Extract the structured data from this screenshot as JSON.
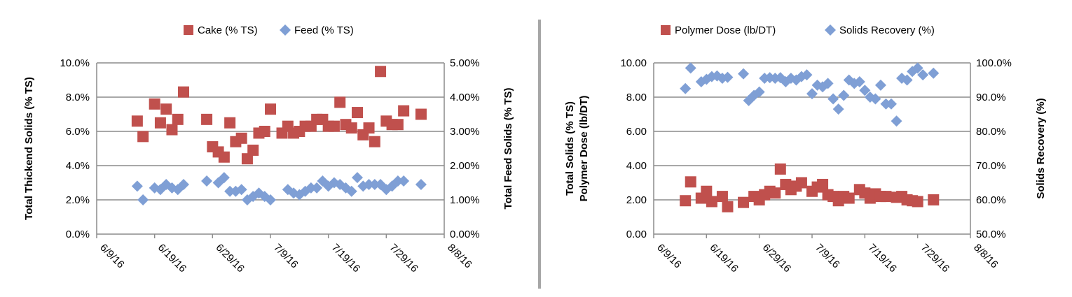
{
  "chart_data": [
    {
      "type": "scatter",
      "x_axis": {
        "type": "date",
        "range": [
          "2016-06-09",
          "2016-08-08"
        ],
        "ticks": [
          "6/9/16",
          "6/19/16",
          "6/29/16",
          "7/9/16",
          "7/19/16",
          "7/29/16",
          "8/8/16"
        ]
      },
      "y_axis_left": {
        "title": "Total Thickend Solids (% TS)",
        "range": [
          0,
          10
        ],
        "ticks": [
          "0.0%",
          "2.0%",
          "4.0%",
          "6.0%",
          "8.0%",
          "10.0%"
        ]
      },
      "y_axis_right": {
        "title": "Total Feed Solids (% TS)",
        "range": [
          0,
          5
        ],
        "ticks": [
          "0.00%",
          "1.00%",
          "2.00%",
          "3.00%",
          "4.00%",
          "5.00%"
        ]
      },
      "grid": true,
      "legend_position": "top",
      "series": [
        {
          "name": "Cake (% TS)",
          "axis": "left",
          "color": "#c0504d",
          "marker": "square",
          "points": [
            [
              "2016-06-16",
              6.6
            ],
            [
              "2016-06-17",
              5.7
            ],
            [
              "2016-06-19",
              7.6
            ],
            [
              "2016-06-20",
              6.5
            ],
            [
              "2016-06-21",
              7.3
            ],
            [
              "2016-06-22",
              6.1
            ],
            [
              "2016-06-23",
              6.7
            ],
            [
              "2016-06-24",
              8.3
            ],
            [
              "2016-06-28",
              6.7
            ],
            [
              "2016-06-29",
              5.1
            ],
            [
              "2016-06-30",
              4.8
            ],
            [
              "2016-07-01",
              4.5
            ],
            [
              "2016-07-02",
              6.5
            ],
            [
              "2016-07-03",
              5.4
            ],
            [
              "2016-07-04",
              5.6
            ],
            [
              "2016-07-05",
              4.4
            ],
            [
              "2016-07-06",
              4.9
            ],
            [
              "2016-07-07",
              5.9
            ],
            [
              "2016-07-08",
              6.0
            ],
            [
              "2016-07-09",
              7.3
            ],
            [
              "2016-07-11",
              5.9
            ],
            [
              "2016-07-12",
              6.3
            ],
            [
              "2016-07-13",
              5.9
            ],
            [
              "2016-07-14",
              6.0
            ],
            [
              "2016-07-15",
              6.3
            ],
            [
              "2016-07-16",
              6.3
            ],
            [
              "2016-07-17",
              6.7
            ],
            [
              "2016-07-18",
              6.7
            ],
            [
              "2016-07-19",
              6.3
            ],
            [
              "2016-07-20",
              6.3
            ],
            [
              "2016-07-21",
              7.7
            ],
            [
              "2016-07-22",
              6.4
            ],
            [
              "2016-07-23",
              6.2
            ],
            [
              "2016-07-24",
              7.1
            ],
            [
              "2016-07-25",
              5.8
            ],
            [
              "2016-07-26",
              6.2
            ],
            [
              "2016-07-27",
              5.4
            ],
            [
              "2016-07-28",
              9.5
            ],
            [
              "2016-07-29",
              6.6
            ],
            [
              "2016-07-30",
              6.4
            ],
            [
              "2016-07-31",
              6.4
            ],
            [
              "2016-08-01",
              7.2
            ],
            [
              "2016-08-04",
              7.0
            ]
          ]
        },
        {
          "name": "Feed (% TS)",
          "axis": "right",
          "color": "#7f9fd5",
          "marker": "diamond",
          "points": [
            [
              "2016-06-16",
              1.4
            ],
            [
              "2016-06-17",
              1.0
            ],
            [
              "2016-06-19",
              1.35
            ],
            [
              "2016-06-20",
              1.3
            ],
            [
              "2016-06-21",
              1.45
            ],
            [
              "2016-06-22",
              1.35
            ],
            [
              "2016-06-23",
              1.3
            ],
            [
              "2016-06-24",
              1.45
            ],
            [
              "2016-06-28",
              1.55
            ],
            [
              "2016-06-30",
              1.5
            ],
            [
              "2016-07-01",
              1.65
            ],
            [
              "2016-07-02",
              1.25
            ],
            [
              "2016-07-03",
              1.25
            ],
            [
              "2016-07-04",
              1.3
            ],
            [
              "2016-07-05",
              1.0
            ],
            [
              "2016-07-06",
              1.1
            ],
            [
              "2016-07-07",
              1.2
            ],
            [
              "2016-07-08",
              1.1
            ],
            [
              "2016-07-09",
              1.0
            ],
            [
              "2016-07-12",
              1.3
            ],
            [
              "2016-07-13",
              1.2
            ],
            [
              "2016-07-14",
              1.15
            ],
            [
              "2016-07-15",
              1.25
            ],
            [
              "2016-07-16",
              1.35
            ],
            [
              "2016-07-17",
              1.35
            ],
            [
              "2016-07-18",
              1.55
            ],
            [
              "2016-07-19",
              1.4
            ],
            [
              "2016-07-20",
              1.5
            ],
            [
              "2016-07-21",
              1.45
            ],
            [
              "2016-07-22",
              1.35
            ],
            [
              "2016-07-23",
              1.25
            ],
            [
              "2016-07-24",
              1.65
            ],
            [
              "2016-07-25",
              1.4
            ],
            [
              "2016-07-26",
              1.45
            ],
            [
              "2016-07-27",
              1.45
            ],
            [
              "2016-07-28",
              1.45
            ],
            [
              "2016-07-29",
              1.3
            ],
            [
              "2016-07-30",
              1.4
            ],
            [
              "2016-07-31",
              1.55
            ],
            [
              "2016-08-01",
              1.55
            ],
            [
              "2016-08-04",
              1.45
            ]
          ]
        }
      ]
    },
    {
      "type": "scatter",
      "x_axis": {
        "type": "date",
        "range": [
          "2016-06-09",
          "2016-08-08"
        ],
        "ticks": [
          "6/9/16",
          "6/19/16",
          "6/29/16",
          "7/9/16",
          "7/19/16",
          "7/29/16",
          "8/8/16"
        ]
      },
      "y_axis_left": {
        "title_lines": [
          "Total Solids (% TS)",
          "Polymer Dose (lb/DT)"
        ],
        "range": [
          0,
          10
        ],
        "ticks": [
          "0.00",
          "2.00",
          "4.00",
          "6.00",
          "8.00",
          "10.00"
        ]
      },
      "y_axis_right": {
        "title": "Solids Recovery (%)",
        "range": [
          50,
          100
        ],
        "ticks": [
          "50.0%",
          "60.0%",
          "70.0%",
          "80.0%",
          "90.0%",
          "100.0%"
        ]
      },
      "grid": true,
      "legend_position": "top",
      "series": [
        {
          "name": "Polymer Dose (lb/DT)",
          "axis": "left",
          "color": "#c0504d",
          "marker": "square",
          "points": [
            [
              "2016-06-15",
              1.95
            ],
            [
              "2016-06-16",
              3.05
            ],
            [
              "2016-06-18",
              2.1
            ],
            [
              "2016-06-19",
              2.5
            ],
            [
              "2016-06-20",
              1.9
            ],
            [
              "2016-06-22",
              2.2
            ],
            [
              "2016-06-23",
              1.6
            ],
            [
              "2016-06-26",
              1.85
            ],
            [
              "2016-06-28",
              2.2
            ],
            [
              "2016-06-29",
              2.0
            ],
            [
              "2016-06-30",
              2.3
            ],
            [
              "2016-07-01",
              2.5
            ],
            [
              "2016-07-02",
              2.4
            ],
            [
              "2016-07-03",
              3.8
            ],
            [
              "2016-07-04",
              2.9
            ],
            [
              "2016-07-05",
              2.6
            ],
            [
              "2016-07-06",
              2.8
            ],
            [
              "2016-07-07",
              3.0
            ],
            [
              "2016-07-09",
              2.5
            ],
            [
              "2016-07-10",
              2.75
            ],
            [
              "2016-07-11",
              2.9
            ],
            [
              "2016-07-12",
              2.3
            ],
            [
              "2016-07-13",
              2.2
            ],
            [
              "2016-07-14",
              1.95
            ],
            [
              "2016-07-15",
              2.2
            ],
            [
              "2016-07-16",
              2.1
            ],
            [
              "2016-07-18",
              2.6
            ],
            [
              "2016-07-19",
              2.4
            ],
            [
              "2016-07-20",
              2.1
            ],
            [
              "2016-07-21",
              2.35
            ],
            [
              "2016-07-22",
              2.2
            ],
            [
              "2016-07-23",
              2.2
            ],
            [
              "2016-07-25",
              2.15
            ],
            [
              "2016-07-26",
              2.2
            ],
            [
              "2016-07-27",
              2.0
            ],
            [
              "2016-07-28",
              1.95
            ],
            [
              "2016-07-29",
              1.9
            ],
            [
              "2016-08-01",
              2.0
            ]
          ]
        },
        {
          "name": "Solids Recovery (%)",
          "axis": "right",
          "color": "#7f9fd5",
          "marker": "diamond",
          "points": [
            [
              "2016-06-15",
              92.5
            ],
            [
              "2016-06-16",
              98.5
            ],
            [
              "2016-06-18",
              94.5
            ],
            [
              "2016-06-19",
              95.2
            ],
            [
              "2016-06-20",
              96.0
            ],
            [
              "2016-06-21",
              96.2
            ],
            [
              "2016-06-22",
              95.5
            ],
            [
              "2016-06-23",
              95.8
            ],
            [
              "2016-06-26",
              96.8
            ],
            [
              "2016-06-27",
              89.0
            ],
            [
              "2016-06-28",
              90.5
            ],
            [
              "2016-06-29",
              91.5
            ],
            [
              "2016-06-30",
              95.5
            ],
            [
              "2016-07-01",
              95.7
            ],
            [
              "2016-07-02",
              95.5
            ],
            [
              "2016-07-03",
              95.7
            ],
            [
              "2016-07-04",
              94.5
            ],
            [
              "2016-07-05",
              95.5
            ],
            [
              "2016-07-06",
              95.0
            ],
            [
              "2016-07-07",
              96.0
            ],
            [
              "2016-07-08",
              96.5
            ],
            [
              "2016-07-09",
              91.0
            ],
            [
              "2016-07-10",
              93.5
            ],
            [
              "2016-07-11",
              93.0
            ],
            [
              "2016-07-12",
              94.0
            ],
            [
              "2016-07-13",
              89.5
            ],
            [
              "2016-07-14",
              86.5
            ],
            [
              "2016-07-15",
              90.5
            ],
            [
              "2016-07-16",
              95.0
            ],
            [
              "2016-07-17",
              94.0
            ],
            [
              "2016-07-18",
              94.5
            ],
            [
              "2016-07-19",
              92.0
            ],
            [
              "2016-07-20",
              90.0
            ],
            [
              "2016-07-21",
              89.5
            ],
            [
              "2016-07-22",
              93.5
            ],
            [
              "2016-07-23",
              88.0
            ],
            [
              "2016-07-24",
              88.0
            ],
            [
              "2016-07-25",
              83.0
            ],
            [
              "2016-07-26",
              95.5
            ],
            [
              "2016-07-27",
              95.0
            ],
            [
              "2016-07-28",
              97.5
            ],
            [
              "2016-07-29",
              98.5
            ],
            [
              "2016-07-30",
              96.5
            ],
            [
              "2016-08-01",
              97.0
            ]
          ]
        }
      ]
    }
  ]
}
